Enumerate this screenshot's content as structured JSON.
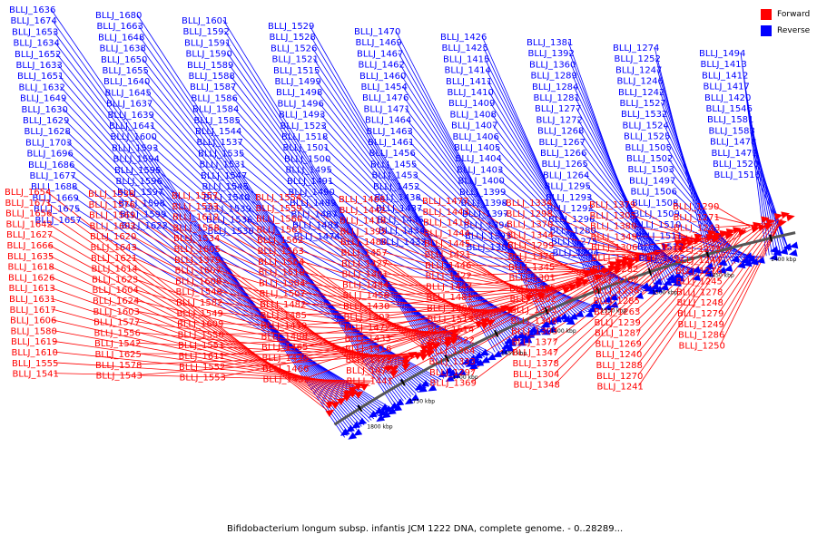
{
  "legend": {
    "forward_label": "Forward",
    "reverse_label": "Reverse",
    "forward_color": "#ff0000",
    "reverse_color": "#0000ff"
  },
  "caption": "Bifidobacterium longum subsp. infantis JCM 1222 DNA, complete genome. - 0..28289...",
  "scale_labels": [
    "1800 kbp",
    "1750 kbp",
    "1700 kbp",
    "1650 kbp",
    "1600 kbp",
    "1550 kbp",
    "1500 kbp",
    "1450 kbp",
    "1400 kbp"
  ],
  "reverse_genes": [
    "BLLJ_1636",
    "BLLJ_1674",
    "BLLJ_1653",
    "BLLJ_1634",
    "BLLJ_1652",
    "BLLJ_1633",
    "BLLJ_1651",
    "BLLJ_1632",
    "BLLJ_1649",
    "BLLJ_1630",
    "BLLJ_1629",
    "BLLJ_1628",
    "BLLJ_1703",
    "BLLJ_1696",
    "BLLJ_1686",
    "BLLJ_1677",
    "BLLJ_1688",
    "BLLJ_1669",
    "BLLJ_1675",
    "BLLJ_1657",
    "BLLJ_1680",
    "BLLJ_1663",
    "BLLJ_1648",
    "BLLJ_1638",
    "BLLJ_1650",
    "BLLJ_1655",
    "BLLJ_1640",
    "BLLJ_1645",
    "BLLJ_1637",
    "BLLJ_1639",
    "BLLJ_1641",
    "BLLJ_1600",
    "BLLJ_1593",
    "BLLJ_1594",
    "BLLJ_1595",
    "BLLJ_1596",
    "BLLJ_1597",
    "BLLJ_1598",
    "BLLJ_1599",
    "BLLJ_1622",
    "BLLJ_1601",
    "BLLJ_1592",
    "BLLJ_1591",
    "BLLJ_1590",
    "BLLJ_1589",
    "BLLJ_1588",
    "BLLJ_1587",
    "BLLJ_1586",
    "BLLJ_1584",
    "BLLJ_1585",
    "BLLJ_1544",
    "BLLJ_1537",
    "BLLJ_1535",
    "BLLJ_1531",
    "BLLJ_1547",
    "BLLJ_1545",
    "BLLJ_1540",
    "BLLJ_1539",
    "BLLJ_1536",
    "BLLJ_1530",
    "BLLJ_1529",
    "BLLJ_1528",
    "BLLJ_1526",
    "BLLJ_1521",
    "BLLJ_1515",
    "BLLJ_1499",
    "BLLJ_1498",
    "BLLJ_1496",
    "BLLJ_1493",
    "BLLJ_1523",
    "BLLJ_1518",
    "BLLJ_1501",
    "BLLJ_1500",
    "BLLJ_1495",
    "BLLJ_1491",
    "BLLJ_1490",
    "BLLJ_1489",
    "BLLJ_1487",
    "BLLJ_1483",
    "BLLJ_1474",
    "BLLJ_1470",
    "BLLJ_1469",
    "BLLJ_1467",
    "BLLJ_1462",
    "BLLJ_1460",
    "BLLJ_1454",
    "BLLJ_1476",
    "BLLJ_1471",
    "BLLJ_1464",
    "BLLJ_1463",
    "BLLJ_1461",
    "BLLJ_1456",
    "BLLJ_1455",
    "BLLJ_1453",
    "BLLJ_1452",
    "BLLJ_1438",
    "BLLJ_1437",
    "BLLJ_1435",
    "BLLJ_1434",
    "BLLJ_1432",
    "BLLJ_1426",
    "BLLJ_1425",
    "BLLJ_1415",
    "BLLJ_1414",
    "BLLJ_1411",
    "BLLJ_1410",
    "BLLJ_1409",
    "BLLJ_1408",
    "BLLJ_1407",
    "BLLJ_1406",
    "BLLJ_1405",
    "BLLJ_1404",
    "BLLJ_1403",
    "BLLJ_1400",
    "BLLJ_1399",
    "BLLJ_1398",
    "BLLJ_1397",
    "BLLJ_1394",
    "BLLJ_1393",
    "BLLJ_1382",
    "BLLJ_1381",
    "BLLJ_1392",
    "BLLJ_1360",
    "BLLJ_1289",
    "BLLJ_1284",
    "BLLJ_1281",
    "BLLJ_1277",
    "BLLJ_1272",
    "BLLJ_1268",
    "BLLJ_1267",
    "BLLJ_1266",
    "BLLJ_1265",
    "BLLJ_1264",
    "BLLJ_1295",
    "BLLJ_1293",
    "BLLJ_1292",
    "BLLJ_1296",
    "BLLJ_1280",
    "BLLJ_1275",
    "BLLJ_1294",
    "BLLJ_1274",
    "BLLJ_1252",
    "BLLJ_1247",
    "BLLJ_1246",
    "BLLJ_1242",
    "BLLJ_1527",
    "BLLJ_1532",
    "BLLJ_1524",
    "BLLJ_1525",
    "BLLJ_1505",
    "BLLJ_1502",
    "BLLJ_1503",
    "BLLJ_1497",
    "BLLJ_1506",
    "BLLJ_1508",
    "BLLJ_1509",
    "BLLJ_1510",
    "BLLJ_1511",
    "BLLJ_1512",
    "BLLJ_1492",
    "BLLJ_1494",
    "BLLJ_1413",
    "BLLJ_1412",
    "BLLJ_1417",
    "BLLJ_1420",
    "BLLJ_1546",
    "BLLJ_1581",
    "BLLJ_1583",
    "BLLJ_1478",
    "BLLJ_1479",
    "BLLJ_1520",
    "BLLJ_1516"
  ],
  "forward_genes": [
    "BLLJ_1654",
    "BLLJ_1671",
    "BLLJ_1656",
    "BLLJ_1642",
    "BLLJ_1627",
    "BLLJ_1666",
    "BLLJ_1635",
    "BLLJ_1618",
    "BLLJ_1626",
    "BLLJ_1613",
    "BLLJ_1631",
    "BLLJ_1617",
    "BLLJ_1606",
    "BLLJ_1580",
    "BLLJ_1619",
    "BLLJ_1610",
    "BLLJ_1555",
    "BLLJ_1541",
    "BLLJ_1538",
    "BLLJ_1576",
    "BLLJ_1569",
    "BLLJ_1602",
    "BLLJ_1620",
    "BLLJ_1643",
    "BLLJ_1621",
    "BLLJ_1614",
    "BLLJ_1623",
    "BLLJ_1604",
    "BLLJ_1624",
    "BLLJ_1603",
    "BLLJ_1577",
    "BLLJ_1556",
    "BLLJ_1542",
    "BLLJ_1625",
    "BLLJ_1578",
    "BLLJ_1543",
    "BLLJ_1557",
    "BLLJ_1533",
    "BLLJ_1612",
    "BLLJ_1558",
    "BLLJ_1534",
    "BLLJ_1605",
    "BLLJ_1579",
    "BLLJ_1607",
    "BLLJ_1608",
    "BLLJ_1548",
    "BLLJ_1582",
    "BLLJ_1549",
    "BLLJ_1609",
    "BLLJ_1550",
    "BLLJ_1551",
    "BLLJ_1611",
    "BLLJ_1552",
    "BLLJ_1553",
    "BLLJ_1554",
    "BLLJ_1559",
    "BLLJ_1560",
    "BLLJ_1561",
    "BLLJ_1562",
    "BLLJ_1563",
    "BLLJ_1564",
    "BLLJ_1519",
    "BLLJ_1504",
    "BLLJ_1507",
    "BLLJ_1482",
    "BLLJ_1485",
    "BLLJ_1459",
    "BLLJ_1488",
    "BLLJ_1465",
    "BLLJ_1436",
    "BLLJ_1466",
    "BLLJ_1439",
    "BLLJ_1468",
    "BLLJ_1442",
    "BLLJ_1418",
    "BLLJ_1395",
    "BLLJ_1480",
    "BLLJ_1457",
    "BLLJ_1427",
    "BLLJ_1401",
    "BLLJ_1484",
    "BLLJ_1458",
    "BLLJ_1430",
    "BLLJ_1402",
    "BLLJ_1472",
    "BLLJ_1433",
    "BLLJ_1416",
    "BLLJ_1473",
    "BLLJ_1475",
    "BLLJ_1441",
    "BLLJ_1477",
    "BLLJ_1443",
    "BLLJ_1419",
    "BLLJ_1444",
    "BLLJ_1445",
    "BLLJ_1421",
    "BLLJ_1446",
    "BLLJ_1422",
    "BLLJ_1447",
    "BLLJ_1481",
    "BLLJ_1486",
    "BLLJ_1513",
    "BLLJ_1514",
    "BLLJ_1522",
    "BLLJ_1364",
    "BLLJ_1333",
    "BLLJ_1297",
    "BLLJ_1369",
    "BLLJ_1334",
    "BLLJ_1298",
    "BLLJ_1370",
    "BLLJ_1344",
    "BLLJ_1299",
    "BLLJ_1376",
    "BLLJ_1345",
    "BLLJ_1301",
    "BLLJ_1375",
    "BLLJ_1302",
    "BLLJ_1373",
    "BLLJ_1346",
    "BLLJ_1303",
    "BLLJ_1377",
    "BLLJ_1347",
    "BLLJ_1378",
    "BLLJ_1304",
    "BLLJ_1348",
    "BLLJ_1379",
    "BLLJ_1305",
    "BLLJ_1380",
    "BLLJ_1349",
    "BLLJ_1306",
    "BLLJ_1307",
    "BLLJ_1282",
    "BLLJ_1262",
    "BLLJ_1238",
    "BLLJ_1285",
    "BLLJ_1263",
    "BLLJ_1239",
    "BLLJ_1287",
    "BLLJ_1269",
    "BLLJ_1240",
    "BLLJ_1288",
    "BLLJ_1270",
    "BLLJ_1241",
    "BLLJ_1290",
    "BLLJ_1271",
    "BLLJ_1243",
    "BLLJ_1291",
    "BLLJ_1273",
    "BLLJ_1244",
    "BLLJ_1276",
    "BLLJ_1245",
    "BLLJ_1278",
    "BLLJ_1248",
    "BLLJ_1279",
    "BLLJ_1249",
    "BLLJ_1286",
    "BLLJ_1250"
  ]
}
